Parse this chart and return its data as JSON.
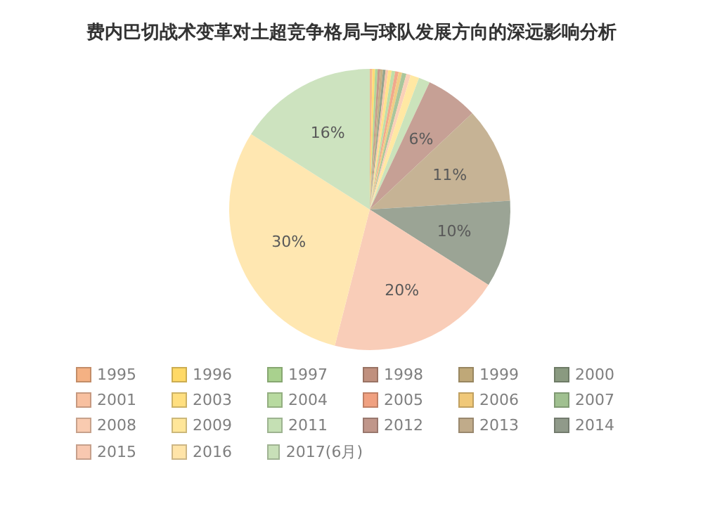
{
  "chart_data": {
    "type": "pie",
    "title": "费内巴切战术变革对土超竞争格局与球队发展方向的深远影响分析",
    "categories": [
      "1995",
      "1996",
      "1997",
      "1998",
      "1999",
      "2000",
      "2001",
      "2003",
      "2004",
      "2005",
      "2006",
      "2007",
      "2008",
      "2009",
      "2011",
      "2012",
      "2013",
      "2014",
      "2015",
      "2016",
      "2017(6月)"
    ],
    "values": [
      0.3,
      0.3,
      0.3,
      0.3,
      0.3,
      0.3,
      0.3,
      0.4,
      0.4,
      0.4,
      0.4,
      0.5,
      0.5,
      1,
      1.3,
      6,
      11,
      10,
      20,
      30,
      16
    ],
    "value_labels": [
      null,
      null,
      null,
      null,
      null,
      null,
      null,
      null,
      null,
      null,
      null,
      null,
      null,
      null,
      null,
      "6%",
      "11%",
      "10%",
      "20%",
      "30%",
      "16%"
    ],
    "colors": [
      "#f4b183",
      "#ffd966",
      "#a9d18e",
      "#c0907e",
      "#bfa878",
      "#8a9a80",
      "#f8c0a0",
      "#ffdf80",
      "#b8daa0",
      "#f0a080",
      "#f0c878",
      "#a0c090",
      "#f9cbb0",
      "#ffe699",
      "#c5e0b4",
      "#c0968a",
      "#c0ab8a",
      "#909a8a",
      "#f8c8b0",
      "#ffe4a8",
      "#c8e0b8"
    ],
    "legend": "bottom"
  }
}
